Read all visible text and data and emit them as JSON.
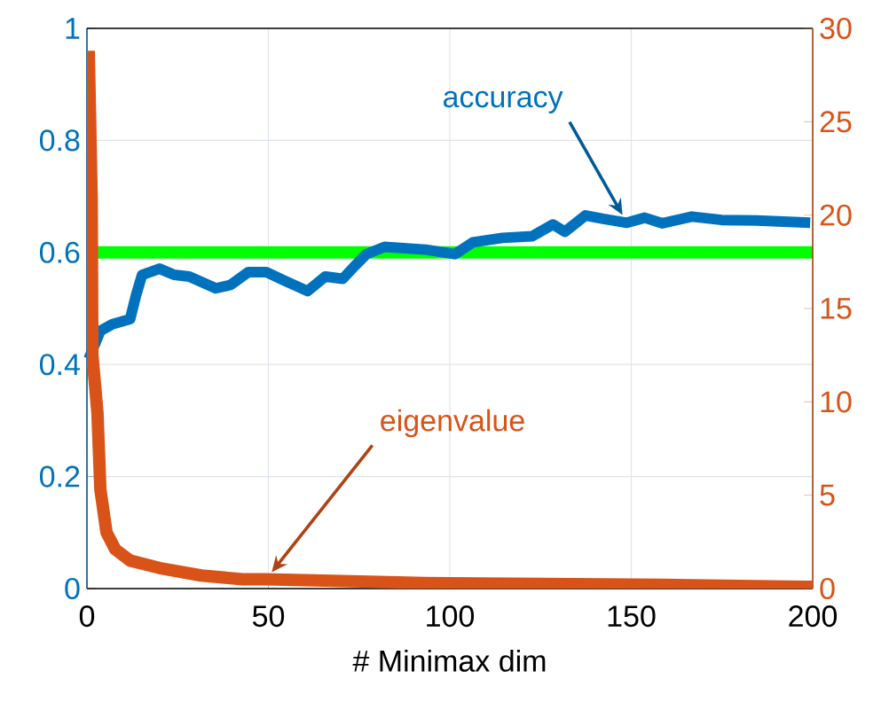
{
  "chart_data": {
    "type": "line",
    "xlabel": "# Minimax dim",
    "x": [
      0.5,
      3.7,
      7.0,
      11.9,
      13.5,
      15.2,
      20,
      24,
      28.2,
      35.5,
      39.6,
      44.5,
      49.4,
      54.3,
      60.8,
      65.7,
      70.5,
      73.8,
      77,
      82,
      93.4,
      101.4,
      106.3,
      114.5,
      122.7,
      128.4,
      131.7,
      137.4,
      142.3,
      148.8,
      153.7,
      158.6,
      166.7,
      174.9,
      184.6,
      199.3
    ],
    "series": [
      {
        "name": "accuracy",
        "color": "#0072bd",
        "values": [
          0.41,
          0.46,
          0.472,
          0.481,
          0.523,
          0.56,
          0.571,
          0.56,
          0.557,
          0.536,
          0.542,
          0.565,
          0.565,
          0.55,
          0.531,
          0.557,
          0.553,
          0.576,
          0.597,
          0.61,
          0.605,
          0.597,
          0.618,
          0.626,
          0.629,
          0.65,
          0.637,
          0.666,
          0.66,
          0.653,
          0.662,
          0.652,
          0.664,
          0.658,
          0.657,
          0.653
        ]
      },
      {
        "name": "eigenvalue",
        "color": "#d95319",
        "axis": "y2",
        "x": [
          0.5,
          1.3,
          1.5,
          2.9,
          3.7,
          5.4,
          7.8,
          11.9,
          20,
          31.5,
          42.9,
          49.4,
          93.4,
          158.6,
          197.7,
          200
        ],
        "values": [
          28.8,
          20.9,
          12.5,
          9.4,
          5.3,
          3.0,
          2.1,
          1.5,
          1.1,
          0.7,
          0.5,
          0.5,
          0.3,
          0.2,
          0.1,
          0.1
        ]
      }
    ],
    "xlim": [
      0,
      200
    ],
    "xticks": [
      0,
      50,
      100,
      150,
      200
    ],
    "ylim": [
      0,
      1
    ],
    "yticks": [
      0,
      0.2,
      0.4,
      0.6,
      0.8,
      1
    ],
    "y2lim": [
      0,
      30
    ],
    "y2ticks": [
      0,
      5,
      10,
      15,
      20,
      25,
      30
    ],
    "ref_lines": [
      {
        "axis": "y",
        "value": 0.6,
        "color": "#00ff00"
      }
    ],
    "grid": true,
    "marker": "none",
    "line_style": "solid"
  }
}
